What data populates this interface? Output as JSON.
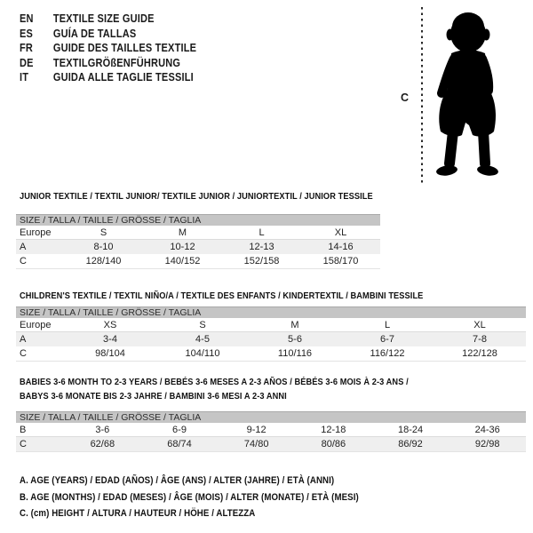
{
  "colors": {
    "table_header_bg": "#c5c5c5",
    "table_row_alt_bg": "#efefef",
    "silhouette": "#000000",
    "text": "#1a1a1a"
  },
  "languages": [
    {
      "code": "EN",
      "label": "TEXTILE SIZE GUIDE"
    },
    {
      "code": "ES",
      "label": "GUÍA DE TALLAS"
    },
    {
      "code": "FR",
      "label": "GUIDE DES TAILLES TEXTILE"
    },
    {
      "code": "DE",
      "label": "TEXTILGRÖßENFÜHRUNG"
    },
    {
      "code": "IT",
      "label": "GUIDA ALLE TAGLIE TESSILI"
    }
  ],
  "figure": {
    "label": "C",
    "icon": "baby-silhouette"
  },
  "tables": [
    {
      "title": "JUNIOR TEXTILE / TEXTIL JUNIOR/ TEXTILE JUNIOR / JUNIORTEXTIL / JUNIOR TESSILE",
      "header": "SIZE / TALLA / TAILLE / GRÖSSE / TAGLIA",
      "rows": [
        {
          "label": "Europe",
          "values": [
            "S",
            "M",
            "L",
            "XL"
          ]
        },
        {
          "label": "A",
          "values": [
            "8-10",
            "10-12",
            "12-13",
            "14-16"
          ]
        },
        {
          "label": "C",
          "values": [
            "128/140",
            "140/152",
            "152/158",
            "158/170"
          ]
        }
      ]
    },
    {
      "title": "CHILDREN'S TEXTILE / TEXTIL NIÑO/A / TEXTILE DES ENFANTS / KINDERTEXTIL / BAMBINI TESSILE",
      "header": "SIZE / TALLA / TAILLE / GRÖSSE / TAGLIA",
      "rows": [
        {
          "label": "Europe",
          "values": [
            "XS",
            "S",
            "M",
            "L",
            "XL"
          ]
        },
        {
          "label": "A",
          "values": [
            "3-4",
            "4-5",
            "5-6",
            "6-7",
            "7-8"
          ]
        },
        {
          "label": "C",
          "values": [
            "98/104",
            "104/110",
            "110/116",
            "116/122",
            "122/128"
          ]
        }
      ]
    },
    {
      "title": "BABIES 3-6 MONTH TO 2-3 YEARS / BEBÉS 3-6 MESES A 2-3 AÑOS / BÉBÉS 3-6 MOIS À 2-3 ANS /\nBABYS 3-6 MONATE BIS 2-3 JAHRE / BAMBINI 3-6 MESI A 2-3 ANNI",
      "header": "SIZE / TALLA / TAILLE / GRÖSSE / TAGLIA",
      "rows": [
        {
          "label": "B",
          "values": [
            "3-6",
            "6-9",
            "9-12",
            "12-18",
            "18-24",
            "24-36"
          ]
        },
        {
          "label": "C",
          "values": [
            "62/68",
            "68/74",
            "74/80",
            "80/86",
            "86/92",
            "92/98"
          ]
        }
      ]
    }
  ],
  "notes": [
    "A. AGE (YEARS) / EDAD (AÑOS) / ÂGE (ANS) / ALTER (JAHRE) / ETÀ (ANNI)",
    "B. AGE (MONTHS) / EDAD (MESES) / ÂGE (MOIS) / ALTER (MONATE) / ETÀ (MESI)",
    "C. (cm) HEIGHT / ALTURA / HAUTEUR / HÖHE / ALTEZZA"
  ]
}
